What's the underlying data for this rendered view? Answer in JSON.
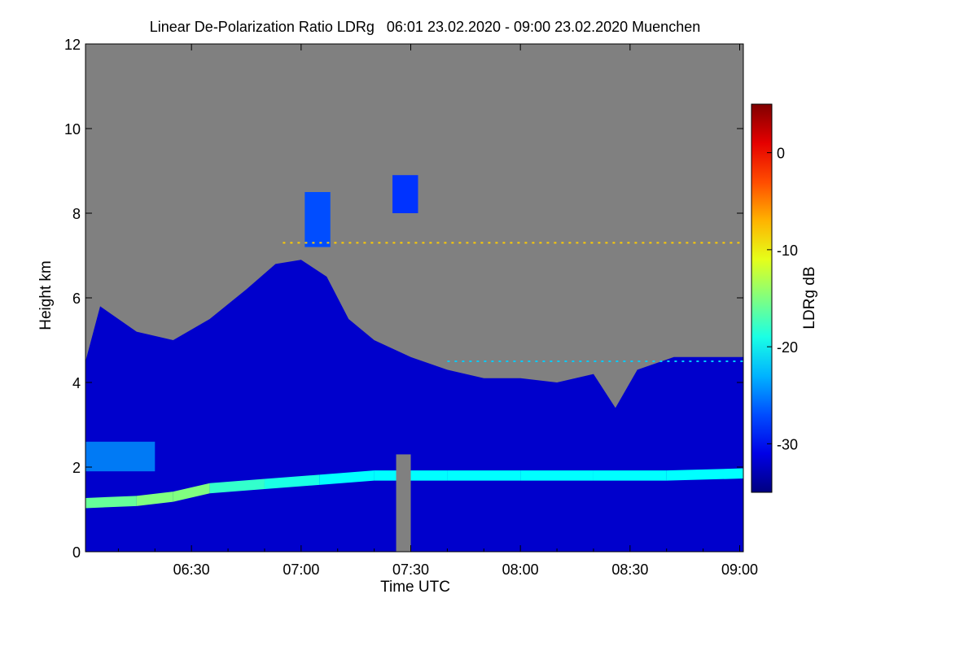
{
  "chart_data": {
    "type": "heatmap",
    "title": "Linear De-Polarization Ratio LDRg   06:01 23.02.2020 - 09:00 23.02.2020 Muenchen",
    "xlabel": "Time UTC",
    "ylabel": "Height km",
    "colorbar_label": "LDRg dB",
    "x_range_minutes": [
      361,
      541
    ],
    "x_ticks": [
      {
        "label": "06:30",
        "minutes": 390
      },
      {
        "label": "07:00",
        "minutes": 420
      },
      {
        "label": "07:30",
        "minutes": 450
      },
      {
        "label": "08:00",
        "minutes": 480
      },
      {
        "label": "08:30",
        "minutes": 510
      },
      {
        "label": "09:00",
        "minutes": 540
      }
    ],
    "ylim": [
      0,
      12
    ],
    "y_ticks": [
      "0",
      "2",
      "4",
      "6",
      "8",
      "10",
      "12"
    ],
    "colorbar_range": [
      -35,
      5
    ],
    "colorbar_ticks": [
      "0",
      "-10",
      "-20",
      "-30"
    ],
    "colormap": "jet",
    "no_data_color": "#808080",
    "background_ldr_db": -32,
    "cloud_top_km": [
      {
        "minutes": 361,
        "top": 4.5
      },
      {
        "minutes": 365,
        "top": 5.8
      },
      {
        "minutes": 375,
        "top": 5.2
      },
      {
        "minutes": 385,
        "top": 5.0
      },
      {
        "minutes": 395,
        "top": 5.5
      },
      {
        "minutes": 405,
        "top": 6.2
      },
      {
        "minutes": 413,
        "top": 6.8
      },
      {
        "minutes": 420,
        "top": 6.9
      },
      {
        "minutes": 427,
        "top": 6.5
      },
      {
        "minutes": 433,
        "top": 5.5
      },
      {
        "minutes": 440,
        "top": 5.0
      },
      {
        "minutes": 450,
        "top": 4.6
      },
      {
        "minutes": 460,
        "top": 4.3
      },
      {
        "minutes": 470,
        "top": 4.1
      },
      {
        "minutes": 480,
        "top": 4.1
      },
      {
        "minutes": 490,
        "top": 4.0
      },
      {
        "minutes": 500,
        "top": 4.2
      },
      {
        "minutes": 506,
        "top": 3.4
      },
      {
        "minutes": 512,
        "top": 4.3
      },
      {
        "minutes": 522,
        "top": 4.6
      },
      {
        "minutes": 532,
        "top": 4.6
      },
      {
        "minutes": 541,
        "top": 4.6
      }
    ],
    "boundary_layer_top_km": [
      {
        "minutes": 361,
        "height": 1.15,
        "ldr_db": -16
      },
      {
        "minutes": 375,
        "height": 1.2,
        "ldr_db": -15
      },
      {
        "minutes": 385,
        "height": 1.3,
        "ldr_db": -15
      },
      {
        "minutes": 395,
        "height": 1.5,
        "ldr_db": -18
      },
      {
        "minutes": 410,
        "height": 1.6,
        "ldr_db": -19
      },
      {
        "minutes": 425,
        "height": 1.7,
        "ldr_db": -20
      },
      {
        "minutes": 440,
        "height": 1.8,
        "ldr_db": -20
      },
      {
        "minutes": 460,
        "height": 1.8,
        "ldr_db": -20
      },
      {
        "minutes": 480,
        "height": 1.8,
        "ldr_db": -20
      },
      {
        "minutes": 500,
        "height": 1.8,
        "ldr_db": -20
      },
      {
        "minutes": 520,
        "height": 1.8,
        "ldr_db": -20
      },
      {
        "minutes": 541,
        "height": 1.85,
        "ldr_db": -19
      }
    ],
    "residual_layer": [
      {
        "minutes_start": 361,
        "minutes_end": 380,
        "bottom": 1.9,
        "top": 2.6,
        "ldr_db": -24
      }
    ],
    "cirrus_patches": [
      {
        "minutes_start": 421,
        "minutes_end": 428,
        "bottom": 7.2,
        "top": 8.5,
        "ldr_db": -27
      },
      {
        "minutes_start": 445,
        "minutes_end": 452,
        "bottom": 8.0,
        "top": 8.9,
        "ldr_db": -28
      }
    ],
    "gaps": [
      {
        "minutes_start": 446,
        "minutes_end": 450,
        "bottom": 0.0,
        "top": 2.3
      }
    ],
    "thin_lines": [
      {
        "height": 7.3,
        "minutes_start": 415,
        "minutes_end": 541,
        "ldr_db": -8
      },
      {
        "height": 4.5,
        "minutes_start": 460,
        "minutes_end": 541,
        "ldr_db": -22
      }
    ]
  }
}
